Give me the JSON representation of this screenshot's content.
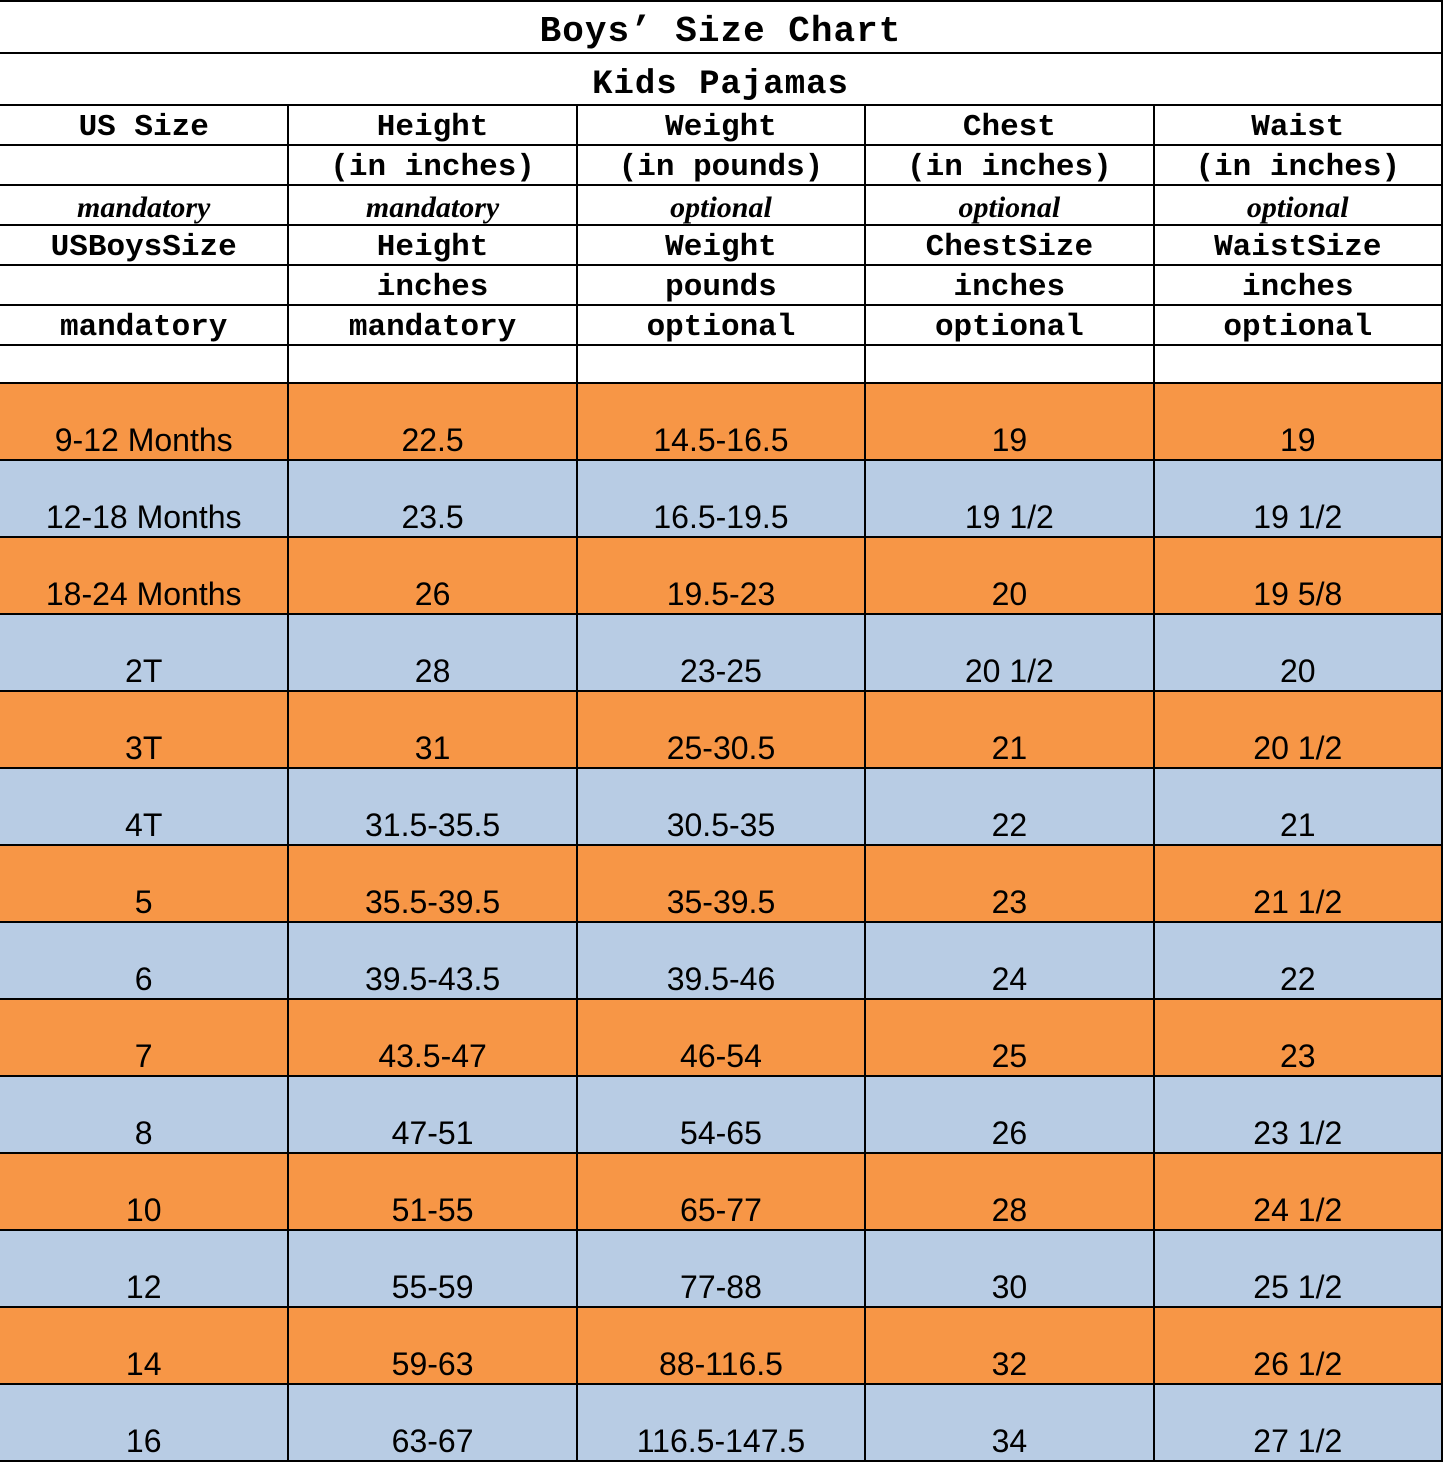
{
  "title": "Boys’ Size Chart",
  "subtitle": "Kids Pajamas",
  "header_rows": [
    [
      "US Size",
      "Height",
      "Weight",
      "Chest",
      "Waist"
    ],
    [
      "",
      "(in inches)",
      "(in pounds)",
      "(in inches)",
      "(in inches)"
    ],
    [
      "mandatory",
      "mandatory",
      "optional",
      "optional",
      "optional"
    ],
    [
      "USBoysSize",
      "Height",
      "Weight",
      "ChestSize",
      "WaistSize"
    ],
    [
      "",
      "inches",
      "pounds",
      "inches",
      "inches"
    ],
    [
      "mandatory",
      "mandatory",
      "optional",
      "optional",
      "optional"
    ]
  ],
  "colors": {
    "orange_row": "#F79646",
    "blue_row": "#B8CCE4"
  },
  "rows": [
    [
      "9-12 Months",
      "22.5",
      "14.5-16.5",
      "19",
      "19"
    ],
    [
      "12-18 Months",
      "23.5",
      "16.5-19.5",
      "19 1/2",
      "19 1/2"
    ],
    [
      "18-24 Months",
      "26",
      "19.5-23",
      "20",
      "19 5/8"
    ],
    [
      "2T",
      "28",
      "23-25",
      "20 1/2",
      "20"
    ],
    [
      "3T",
      "31",
      "25-30.5",
      "21",
      "20 1/2"
    ],
    [
      "4T",
      "31.5-35.5",
      "30.5-35",
      "22",
      "21"
    ],
    [
      "5",
      "35.5-39.5",
      "35-39.5",
      "23",
      "21 1/2"
    ],
    [
      "6",
      "39.5-43.5",
      "39.5-46",
      "24",
      "22"
    ],
    [
      "7",
      "43.5-47",
      "46-54",
      "25",
      "23"
    ],
    [
      "8",
      "47-51",
      "54-65",
      "26",
      "23 1/2"
    ],
    [
      "10",
      "51-55",
      "65-77",
      "28",
      "24 1/2"
    ],
    [
      "12",
      "55-59",
      "77-88",
      "30",
      "25 1/2"
    ],
    [
      "14",
      "59-63",
      "88-116.5",
      "32",
      "26 1/2"
    ],
    [
      "16",
      "63-67",
      "116.5-147.5",
      "34",
      "27 1/2"
    ]
  ]
}
